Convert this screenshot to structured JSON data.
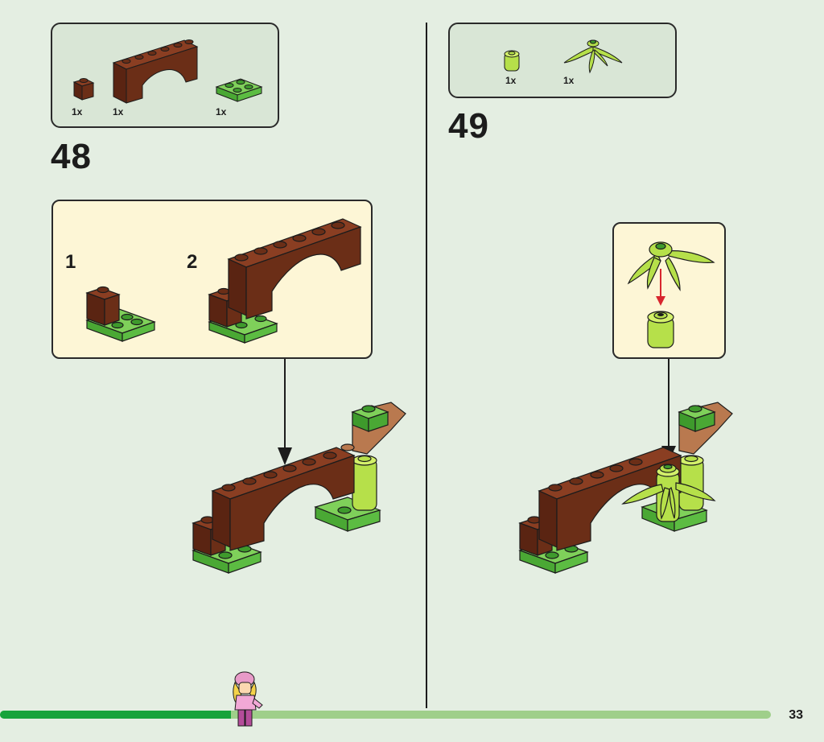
{
  "page": {
    "number": "33"
  },
  "step48": {
    "number": "48",
    "parts": [
      {
        "qty": "1x",
        "name": "brick-1x1-reddish-brown"
      },
      {
        "qty": "1x",
        "name": "arch-1x6x2-reddish-brown"
      },
      {
        "qty": "1x",
        "name": "plate-2x2-bright-green"
      }
    ],
    "substeps": [
      "1",
      "2"
    ]
  },
  "step49": {
    "number": "49",
    "parts": [
      {
        "qty": "1x",
        "name": "round-brick-1x1-lime"
      },
      {
        "qty": "1x",
        "name": "plant-leaves-lime"
      }
    ]
  },
  "progress": {
    "fraction": 0.3
  },
  "colors": {
    "background": "#e4eee2",
    "parts_box": "#d9e6d6",
    "callout": "#fdf6d6",
    "brown": "#6b2e17",
    "tan": "#b9794f",
    "green": "#6cc24a",
    "dark_green": "#3e9a2c",
    "lime": "#b6e04a",
    "progress_done": "#17a33b",
    "progress_todo": "#9fcf8a",
    "arrow_red": "#d8262e"
  }
}
